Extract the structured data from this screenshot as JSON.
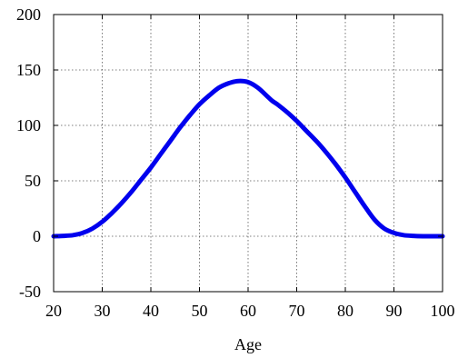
{
  "chart_data": {
    "type": "line",
    "title": "",
    "xlabel": "Age",
    "ylabel": "",
    "xlim": [
      20,
      100
    ],
    "ylim": [
      -50,
      200
    ],
    "xticks": [
      20,
      30,
      40,
      50,
      60,
      70,
      80,
      90,
      100
    ],
    "yticks": [
      -50,
      0,
      50,
      100,
      150,
      200
    ],
    "xtick_labels": [
      "20",
      "30",
      "40",
      "50",
      "60",
      "70",
      "80",
      "90",
      "100"
    ],
    "ytick_labels": [
      "-50",
      "0",
      "50",
      "100",
      "150",
      "200"
    ],
    "grid": true,
    "legend": "none",
    "series": [
      {
        "color": "#0000ee",
        "x": [
          20,
          22,
          24,
          26,
          28,
          30,
          32,
          34,
          36,
          38,
          40,
          42,
          44,
          46,
          48,
          50,
          52,
          54,
          56,
          58,
          60,
          62,
          64,
          65,
          66,
          68,
          70,
          72,
          74,
          76,
          78,
          80,
          82,
          84,
          86,
          88,
          90,
          92,
          94,
          96,
          98,
          100
        ],
        "y": [
          0,
          0.3,
          1,
          3,
          7,
          13,
          21,
          30,
          40,
          51,
          62,
          74,
          86,
          98,
          109,
          119,
          127,
          134,
          138,
          140,
          139,
          134,
          126,
          122,
          119,
          112,
          104,
          95,
          86,
          76,
          65,
          53,
          40,
          27,
          15,
          7,
          3,
          1,
          0.3,
          0,
          0,
          0
        ]
      }
    ]
  }
}
